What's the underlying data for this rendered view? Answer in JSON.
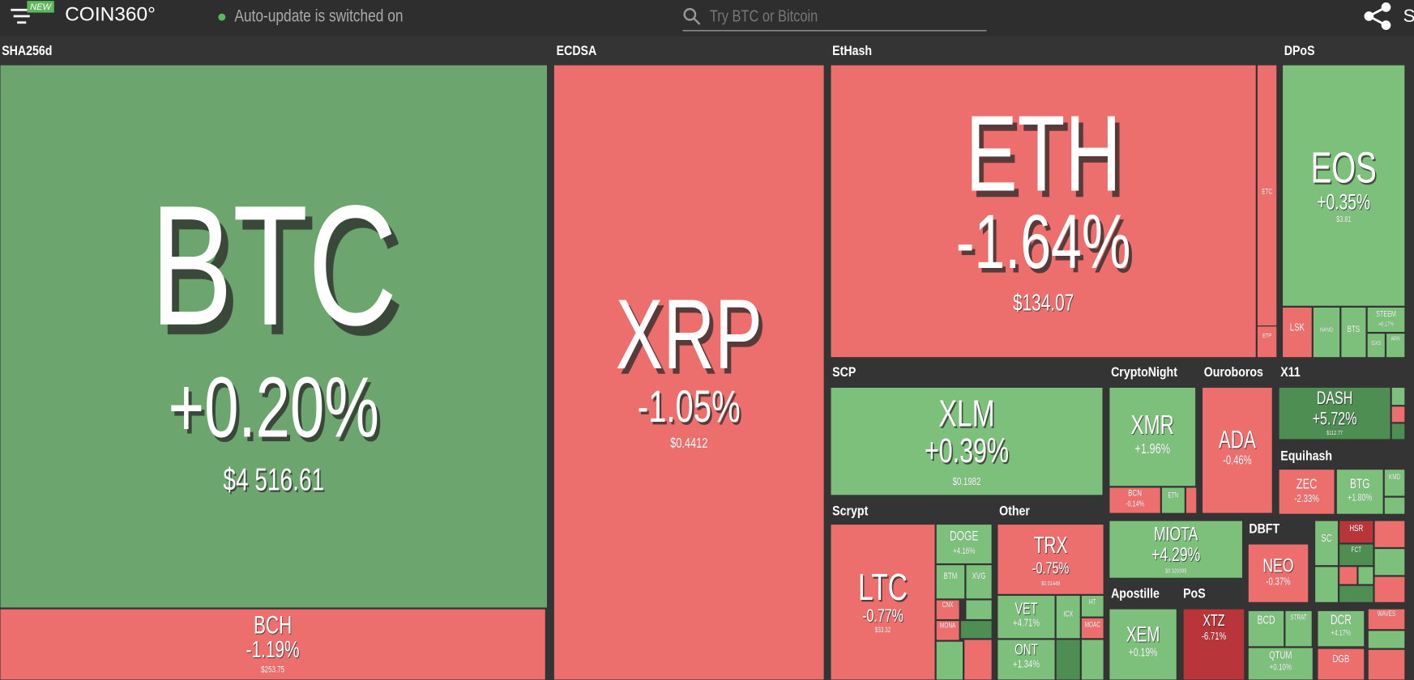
{
  "header": {
    "badge": "NEW",
    "logo": "COIN360°",
    "status": "Auto-update is switched on",
    "search_placeholder": "Try BTC or Bitcoin",
    "cut_text": "S"
  },
  "groups": [
    {
      "label": "SHA256d"
    },
    {
      "label": "ECDSA"
    },
    {
      "label": "EtHash"
    },
    {
      "label": "DPoS"
    },
    {
      "label": "SCP"
    },
    {
      "label": "CryptoNight"
    },
    {
      "label": "Ouroboros"
    },
    {
      "label": "X11"
    },
    {
      "label": "Equihash"
    },
    {
      "label": "Scrypt"
    },
    {
      "label": "Other"
    },
    {
      "label": "DBFT"
    },
    {
      "label": "Apostille"
    },
    {
      "label": "PoS"
    }
  ],
  "tiles": [
    {
      "symbol": "BTC",
      "change": "+0.20%",
      "price": "$4 516.61"
    },
    {
      "symbol": "BCH",
      "change": "-1.19%",
      "price": "$253.75"
    },
    {
      "symbol": "XRP",
      "change": "-1.05%",
      "price": "$0.4412"
    },
    {
      "symbol": "ETH",
      "change": "-1.64%",
      "price": "$134.07"
    },
    {
      "symbol": "ETC"
    },
    {
      "symbol": "ETP"
    },
    {
      "symbol": "EOS",
      "change": "+0.35%",
      "price": "$3.81"
    },
    {
      "symbol": "LSK"
    },
    {
      "symbol": "NANO"
    },
    {
      "symbol": "BTS"
    },
    {
      "symbol": "STEEM",
      "change": "+0.17%"
    },
    {
      "symbol": "GXS"
    },
    {
      "symbol": "ARK"
    },
    {
      "symbol": "XLM",
      "change": "+0.39%",
      "price": "$0.1982"
    },
    {
      "symbol": "XMR",
      "change": "+1.96%"
    },
    {
      "symbol": "BCN",
      "change": "-0.14%"
    },
    {
      "symbol": "ETN"
    },
    {
      "symbol": "ADA",
      "change": "-0.46%"
    },
    {
      "symbol": "DASH",
      "change": "+5.72%",
      "price": "$112.77"
    },
    {
      "symbol": "ZEC",
      "change": "-2.33%"
    },
    {
      "symbol": "BTG",
      "change": "+1.80%"
    },
    {
      "symbol": "KMD"
    },
    {
      "symbol": "LTC",
      "change": "-0.77%",
      "price": "$33.32"
    },
    {
      "symbol": "DOGE",
      "change": "+4.16%"
    },
    {
      "symbol": "BTM"
    },
    {
      "symbol": "XVG"
    },
    {
      "symbol": "CNX"
    },
    {
      "symbol": "MONA"
    },
    {
      "symbol": "TRX",
      "change": "-0.75%",
      "price": "$0.01449"
    },
    {
      "symbol": "VET",
      "change": "+4.71%"
    },
    {
      "symbol": "ICX"
    },
    {
      "symbol": "HT"
    },
    {
      "symbol": "MOAC"
    },
    {
      "symbol": "ONT",
      "change": "+1.34%"
    },
    {
      "symbol": "MIOTA",
      "change": "+4.29%",
      "price": "$0.329399"
    },
    {
      "symbol": "NEO",
      "change": "-0.37%"
    },
    {
      "symbol": "SC"
    },
    {
      "symbol": "HSR"
    },
    {
      "symbol": "FCT"
    },
    {
      "symbol": "XEM",
      "change": "+0.19%"
    },
    {
      "symbol": "XTZ",
      "change": "-6.71%"
    },
    {
      "symbol": "BCD"
    },
    {
      "symbol": "STRAT"
    },
    {
      "symbol": "DCR",
      "change": "+4.17%"
    },
    {
      "symbol": "WAVES"
    },
    {
      "symbol": "QTUM",
      "change": "+0.10%"
    },
    {
      "symbol": "DGB"
    }
  ]
}
